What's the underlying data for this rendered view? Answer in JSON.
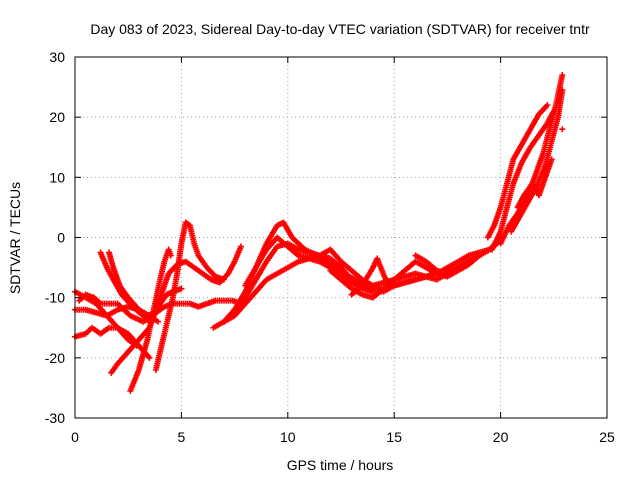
{
  "chart_data": {
    "type": "scatter",
    "title": "Day 083 of 2023, Sidereal Day-to-day VTEC variation (SDTVAR) for receiver tntr",
    "xlabel": "GPS time / hours",
    "ylabel": "SDTVAR / TECUs",
    "xlim": [
      0,
      25
    ],
    "ylim": [
      -30,
      30
    ],
    "xticks": [
      0,
      5,
      10,
      15,
      20,
      25
    ],
    "yticks": [
      -30,
      -20,
      -10,
      0,
      10,
      20,
      30
    ],
    "grid": true,
    "marker": "+",
    "color": "#ff0000",
    "series": [
      {
        "x": [
          0,
          0.5,
          1.0,
          1.5,
          2.0,
          2.5,
          2.9
        ],
        "y": [
          -9,
          -10,
          -11,
          -13,
          -15,
          -17,
          -18
        ]
      },
      {
        "x": [
          0,
          0.5,
          1.0,
          1.5,
          2.0,
          2.5,
          3.0,
          3.5,
          3.9
        ],
        "y": [
          -12,
          -12,
          -12.5,
          -13,
          -12,
          -11.5,
          -12,
          -13,
          -14
        ]
      },
      {
        "x": [
          0,
          0.5,
          0.8,
          1.2,
          1.6,
          2.0,
          2.5,
          3.0,
          3.5
        ],
        "y": [
          -16.5,
          -16,
          -15,
          -16,
          -15,
          -15,
          -16,
          -18,
          -20
        ]
      },
      {
        "x": [
          0.2,
          0.5,
          0.9,
          1.2,
          1.6,
          2.0,
          2.6,
          3.2,
          3.7,
          4.0,
          4.3,
          4.6,
          5.0
        ],
        "y": [
          -10.5,
          -9.5,
          -10,
          -11,
          -11,
          -11,
          -13,
          -14,
          -13,
          -11,
          -9.5,
          -9,
          -8.5
        ]
      },
      {
        "x": [
          1.2,
          1.5,
          1.8,
          2.2,
          2.7,
          3.2,
          3.5
        ],
        "y": [
          -2.5,
          -5,
          -7,
          -9.5,
          -11.5,
          -13,
          -14
        ]
      },
      {
        "x": [
          1.6,
          1.8,
          2.1,
          2.5,
          3.0,
          3.4,
          3.8,
          4.0,
          4.2,
          4.6,
          5.0,
          5.4,
          5.8,
          6.2,
          6.6,
          7.0,
          7.4,
          7.8
        ],
        "y": [
          -2.5,
          -5,
          -8,
          -10,
          -12,
          -13,
          -12.5,
          -12,
          -11.5,
          -11,
          -11,
          -11,
          -11.5,
          -11,
          -10.5,
          -10.5,
          -10.5,
          -11
        ]
      },
      {
        "x": [
          1.7,
          2.0,
          2.5,
          3.0,
          3.5,
          4.0,
          4.4,
          4.8,
          5.2,
          5.6,
          6.0,
          6.4,
          6.8,
          7.2,
          7.5,
          7.8
        ],
        "y": [
          -22.5,
          -21,
          -19,
          -17,
          -15,
          -10,
          -6,
          -4.5,
          -4,
          -5,
          -6,
          -7,
          -7.5,
          -6,
          -4,
          -1.5
        ]
      },
      {
        "x": [
          2.6,
          3.0,
          3.4,
          3.7,
          4.0,
          4.2,
          4.4,
          4.5
        ],
        "y": [
          -25.5,
          -22,
          -17,
          -12,
          -7,
          -4,
          -2,
          -3
        ]
      },
      {
        "x": [
          3.8,
          4.0,
          4.2,
          4.4,
          4.6,
          4.8,
          5.0,
          5.2,
          5.4,
          5.6,
          5.8,
          6.2,
          6.6,
          7.0
        ],
        "y": [
          -22,
          -19,
          -16,
          -13,
          -10,
          -6,
          -1,
          2.5,
          2,
          -1,
          -3,
          -5,
          -6.5,
          -7
        ]
      },
      {
        "x": [
          6.5,
          7.0,
          7.5,
          8.0,
          8.5,
          9.0,
          9.5,
          10.0,
          10.5,
          11.0,
          11.5,
          12.0,
          12.5,
          13.0,
          13.5,
          14.0
        ],
        "y": [
          -15,
          -14,
          -13,
          -11,
          -9,
          -7,
          -6,
          -5,
          -4,
          -3.5,
          -4,
          -5,
          -6,
          -7.5,
          -8.5,
          -9
        ]
      },
      {
        "x": [
          7.0,
          7.5,
          8.0,
          8.5,
          9.0,
          9.5,
          9.8,
          10.2,
          10.8,
          11.4,
          12.0,
          12.6,
          13.2,
          13.8,
          14.4
        ],
        "y": [
          -14,
          -12,
          -9,
          -5,
          -1,
          2,
          2.5,
          0,
          -2,
          -3,
          -4.5,
          -6,
          -7,
          -8,
          -8.5
        ]
      },
      {
        "x": [
          7.5,
          8.0,
          8.5,
          9.0,
          9.5,
          10.0,
          10.5,
          11.0,
          11.5,
          12.0,
          12.5,
          13.0,
          13.5,
          14.0
        ],
        "y": [
          -12,
          -10,
          -7,
          -4,
          -1.5,
          -1,
          -2,
          -2.5,
          -3,
          -3.5,
          -5,
          -7,
          -8,
          -8
        ]
      },
      {
        "x": [
          8.0,
          8.5,
          9.0,
          9.5,
          10.0,
          10.5,
          11.0,
          11.5,
          12.0,
          12.5,
          13.0,
          13.5,
          14.0,
          14.5,
          15.0
        ],
        "y": [
          -8,
          -5,
          -2,
          0,
          -1.5,
          -3,
          -3.5,
          -3,
          -2,
          -4,
          -5.5,
          -7,
          -8,
          -7.5,
          -7
        ]
      },
      {
        "x": [
          11.5,
          12.0,
          12.5,
          13.0,
          13.5,
          14.0,
          14.5,
          15.0,
          15.5,
          16.0,
          16.5,
          17.0,
          17.5,
          18.0,
          18.5,
          19.0
        ],
        "y": [
          -3,
          -4,
          -6,
          -7,
          -8,
          -9,
          -9,
          -8,
          -7.5,
          -7,
          -6.5,
          -6,
          -5.5,
          -5,
          -4,
          -3
        ]
      },
      {
        "x": [
          12.0,
          12.5,
          13.0,
          13.5,
          14.0,
          14.5,
          15.0,
          15.5,
          16.0,
          16.5,
          17.0,
          17.5,
          18.0,
          18.5,
          19.0,
          19.5
        ],
        "y": [
          -5.5,
          -7,
          -8.5,
          -9.5,
          -10,
          -8.5,
          -7,
          -5.5,
          -4,
          -5,
          -6,
          -6.5,
          -5.5,
          -4.5,
          -3,
          -2
        ]
      },
      {
        "x": [
          13.0,
          13.5,
          14.0,
          14.2,
          14.6,
          15.0,
          15.5,
          16.0,
          16.5,
          17.0,
          17.5,
          18.0,
          18.5,
          19.0,
          19.5,
          20.0
        ],
        "y": [
          -9.5,
          -8,
          -5,
          -3.5,
          -7,
          -8,
          -7.5,
          -7,
          -6.5,
          -7,
          -6,
          -5,
          -4,
          -3,
          -2,
          -0.5
        ]
      },
      {
        "x": [
          15.0,
          15.5,
          16.0,
          16.5,
          17.0,
          17.5,
          18.0,
          18.5,
          19.0,
          19.5,
          19.8
        ],
        "y": [
          -7,
          -6.5,
          -6,
          -6.5,
          -6,
          -5,
          -4,
          -3,
          -2.5,
          -2,
          -1
        ]
      },
      {
        "x": [
          16.0,
          16.5,
          17.0,
          17.5,
          18.0,
          18.5,
          19.0,
          19.5,
          20.0
        ],
        "y": [
          -3,
          -4,
          -5.5,
          -6,
          -5,
          -4,
          -3,
          -2,
          0
        ]
      },
      {
        "x": [
          19.4,
          19.7,
          20.0,
          20.3,
          20.6,
          21.0,
          21.4,
          21.8,
          22.2
        ],
        "y": [
          0,
          2,
          5,
          9,
          13,
          15.5,
          18,
          20.5,
          22
        ]
      },
      {
        "x": [
          19.6,
          20.0,
          20.3,
          20.6,
          21.0,
          21.4,
          21.8,
          22.2,
          22.5
        ],
        "y": [
          -2,
          1,
          5,
          9,
          12.5,
          15,
          17,
          19,
          21
        ]
      },
      {
        "x": [
          20.0,
          20.4,
          20.8,
          21.2,
          21.6,
          22.0,
          22.3,
          22.6,
          22.9
        ],
        "y": [
          -1,
          2,
          4,
          6.5,
          10,
          14,
          18,
          22,
          27
        ]
      },
      {
        "x": [
          20.5,
          20.9,
          21.3,
          21.7,
          22.1,
          22.4,
          22.7,
          22.9
        ],
        "y": [
          1,
          3.5,
          6,
          8.5,
          12,
          16,
          20,
          24.5
        ]
      },
      {
        "x": [
          20.8,
          21.1,
          21.5,
          21.8,
          22.1,
          22.4
        ],
        "y": [
          5,
          7,
          9,
          7,
          10,
          13
        ]
      },
      {
        "x": [
          22.9
        ],
        "y": [
          18
        ]
      }
    ]
  }
}
